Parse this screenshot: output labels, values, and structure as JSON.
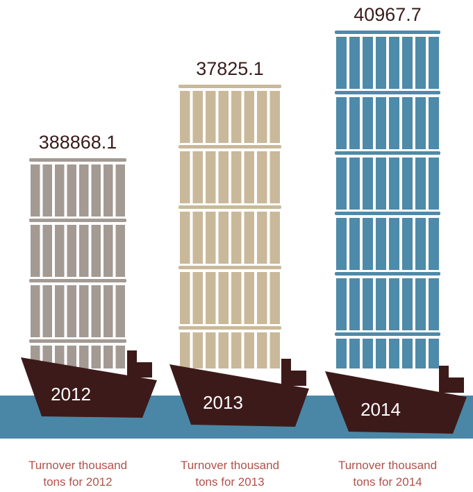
{
  "items": [
    {
      "value": "388868.1",
      "year": "2012",
      "caption": [
        "Turnover thousand",
        "tons for 2012"
      ]
    },
    {
      "value": "37825.1",
      "year": "2013",
      "caption": [
        "Turnover thousand",
        "tons for 2013"
      ]
    },
    {
      "value": "40967.7",
      "year": "2014",
      "caption": [
        "Turnover thousand",
        "tons for 2014"
      ]
    }
  ]
}
